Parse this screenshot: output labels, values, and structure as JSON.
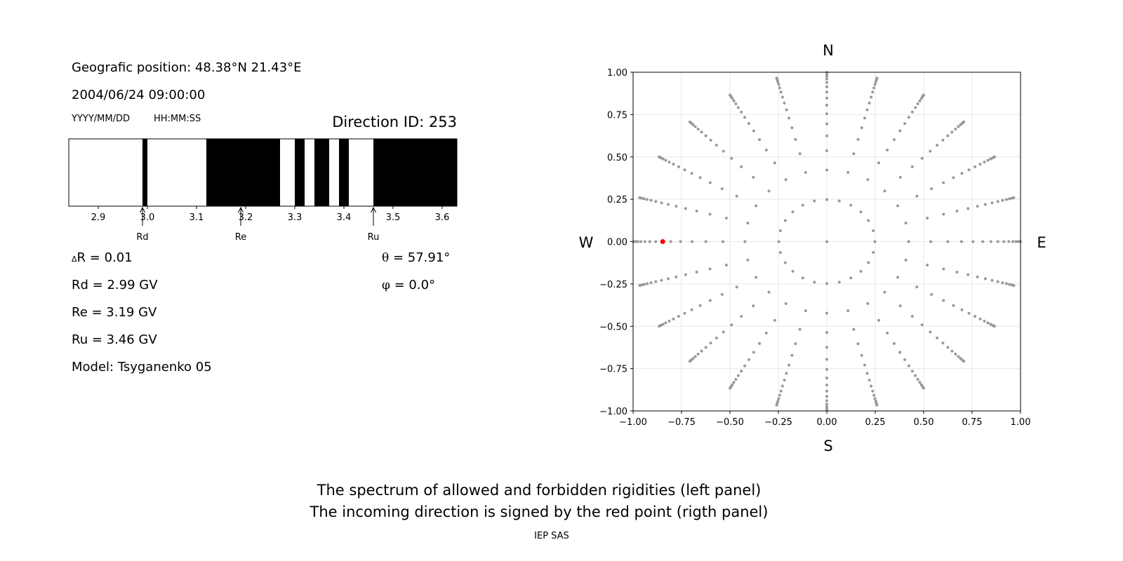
{
  "left_panel": {
    "position": "Geografic position: 48.38°N 21.43°E",
    "datetime": "2004/06/24 09:00:00",
    "date_format": "YYYY/MM/DD",
    "time_format": "HH:MM:SS",
    "direction_id": "Direction ID: 253",
    "delta_r_symbol": "Δ",
    "delta_r": "R = 0.01",
    "rd": "Rd = 2.99 GV",
    "re": "Re = 3.19 GV",
    "ru": "Ru = 3.46 GV",
    "model": "Model: Tsyganenko 05",
    "theta_symbol": "θ",
    "theta": " = 57.91°",
    "phi_symbol": "φ",
    "phi": " = 0.0°"
  },
  "footer": {
    "line1": "The spectrum of allowed and forbidden rigidities (left panel)",
    "line2": "The incoming direction is signed by the red point (rigth panel)",
    "credit": "IEP SAS"
  },
  "chart_data": [
    {
      "type": "bar",
      "kind": "rigidity-spectrum",
      "xlim": [
        2.84,
        3.63
      ],
      "xticks": [
        "2.9",
        "3.0",
        "3.1",
        "3.2",
        "3.3",
        "3.4",
        "3.5",
        "3.6"
      ],
      "xtick_values": [
        2.9,
        3.0,
        3.1,
        3.2,
        3.3,
        3.4,
        3.5,
        3.6
      ],
      "background_color": "#ffffff",
      "forbidden_color": "#000000",
      "forbidden_bands": [
        [
          2.99,
          3.0
        ],
        [
          3.12,
          3.27
        ],
        [
          3.3,
          3.32
        ],
        [
          3.34,
          3.37
        ],
        [
          3.39,
          3.41
        ],
        [
          3.46,
          3.63
        ]
      ],
      "markers": [
        {
          "label": "Rd",
          "value": 2.99
        },
        {
          "label": "Re",
          "value": 3.19
        },
        {
          "label": "Ru",
          "value": 3.46
        }
      ]
    },
    {
      "type": "scatter",
      "kind": "direction-grid",
      "xlim": [
        -1,
        1
      ],
      "ylim": [
        -1,
        1
      ],
      "xticks": [
        "−1.00",
        "−0.75",
        "−0.50",
        "−0.25",
        "0.00",
        "0.25",
        "0.50",
        "0.75",
        "1.00"
      ],
      "yticks": [
        "−1.00",
        "−0.75",
        "−0.50",
        "−0.25",
        "0.00",
        "0.25",
        "0.50",
        "0.75",
        "1.00"
      ],
      "tick_values": [
        -1,
        -0.75,
        -0.5,
        -0.25,
        0,
        0.25,
        0.5,
        0.75,
        1
      ],
      "grid": true,
      "compass": {
        "north": "N",
        "south": "S",
        "west": "W",
        "east": "E"
      },
      "point_color": "#999999",
      "highlight_color": "#ff0000",
      "azimuth_step_deg": 15,
      "theta_deg": [
        0,
        14.36,
        25.0,
        32.46,
        38.62,
        44.05,
        49.01,
        53.63,
        57.91,
        62.03,
        66.07,
        69.94,
        73.74,
        77.36,
        81.02,
        84.62,
        88.21
      ],
      "highlight_point": {
        "x": -0.847,
        "y": 0.0
      }
    }
  ]
}
